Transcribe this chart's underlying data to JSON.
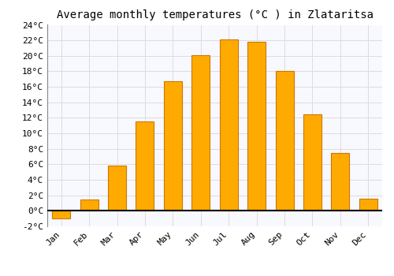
{
  "title": "Average monthly temperatures (°C ) in Zlataritsa",
  "months": [
    "Jan",
    "Feb",
    "Mar",
    "Apr",
    "May",
    "Jun",
    "Jul",
    "Aug",
    "Sep",
    "Oct",
    "Nov",
    "Dec"
  ],
  "values": [
    -1.0,
    1.5,
    5.8,
    11.5,
    16.7,
    20.1,
    22.1,
    21.8,
    18.0,
    12.4,
    7.5,
    1.6
  ],
  "bar_color": "#FFAA00",
  "bar_edge_color": "#CC7700",
  "background_color": "#FFFFFF",
  "plot_bg_color": "#F8F8FF",
  "grid_color": "#DDDDDD",
  "ylim": [
    -2,
    24
  ],
  "yticks": [
    -2,
    0,
    2,
    4,
    6,
    8,
    10,
    12,
    14,
    16,
    18,
    20,
    22,
    24
  ],
  "ytick_labels": [
    "-2°C",
    "0°C",
    "2°C",
    "4°C",
    "6°C",
    "8°C",
    "10°C",
    "12°C",
    "14°C",
    "16°C",
    "18°C",
    "20°C",
    "22°C",
    "24°C"
  ],
  "title_fontsize": 10,
  "tick_fontsize": 8,
  "font_family": "monospace",
  "bar_width": 0.65
}
